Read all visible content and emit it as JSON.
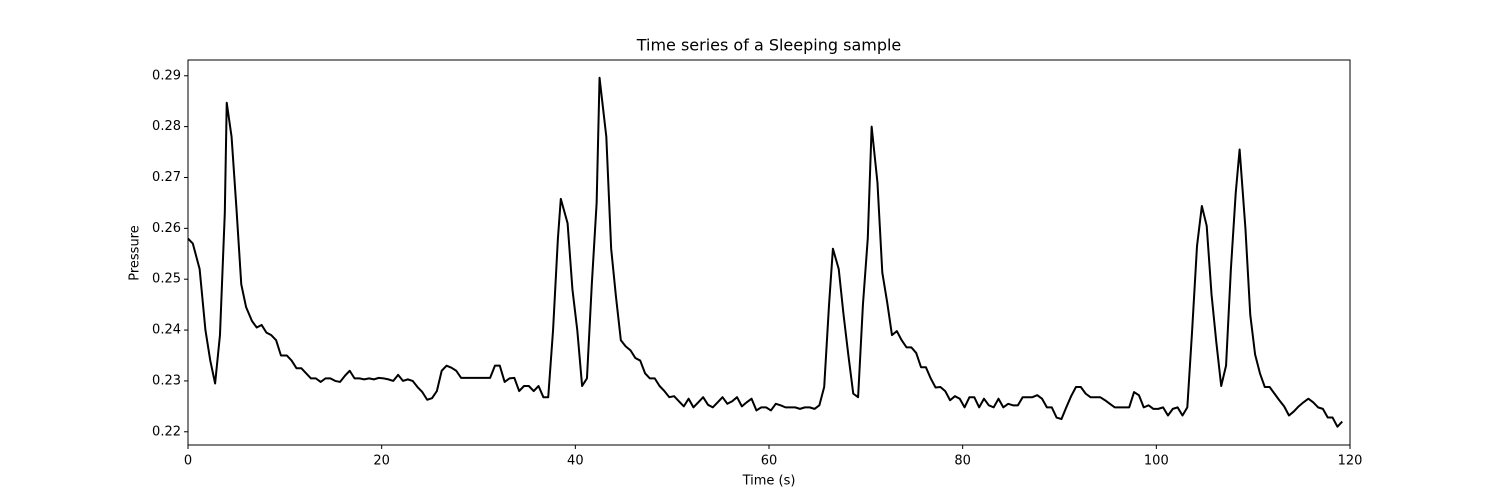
{
  "chart_data": {
    "type": "line",
    "title": "Time series of a Sleeping sample",
    "x_label": "Time (s)",
    "y_label": "Pressure",
    "x": [
      0,
      0.5,
      1.2,
      1.8,
      2.3,
      2.8,
      3.3,
      3.8,
      4.0,
      4.5,
      5.0,
      5.5,
      6.0,
      6.6,
      7.1,
      7.6,
      8.1,
      8.6,
      9.1,
      9.6,
      10.2,
      10.7,
      11.2,
      11.7,
      12.2,
      12.7,
      13.2,
      13.7,
      14.2,
      14.7,
      15.2,
      15.7,
      16.2,
      16.7,
      17.2,
      17.7,
      18.2,
      18.7,
      19.2,
      19.7,
      20.2,
      20.7,
      21.2,
      21.7,
      22.2,
      22.7,
      23.2,
      23.7,
      24.2,
      24.7,
      25.2,
      25.7,
      26.2,
      26.7,
      27.2,
      27.7,
      28.2,
      28.7,
      29.2,
      29.7,
      30.2,
      30.7,
      31.2,
      31.7,
      32.2,
      32.7,
      33.2,
      33.7,
      34.2,
      34.7,
      35.2,
      35.7,
      36.2,
      36.7,
      37.2,
      37.7,
      38.2,
      38.5,
      39.2,
      39.7,
      40.2,
      40.7,
      41.2,
      41.7,
      42.2,
      42.5,
      43.2,
      43.7,
      44.2,
      44.7,
      45.2,
      45.7,
      46.2,
      46.7,
      47.2,
      47.7,
      48.2,
      48.7,
      49.2,
      49.7,
      50.2,
      50.7,
      51.2,
      51.7,
      52.2,
      52.7,
      53.2,
      53.7,
      54.2,
      54.7,
      55.2,
      55.7,
      56.2,
      56.7,
      57.2,
      57.7,
      58.2,
      58.7,
      59.2,
      59.7,
      60.2,
      60.7,
      61.2,
      61.7,
      62.2,
      62.7,
      63.2,
      63.7,
      64.2,
      64.7,
      65.2,
      65.7,
      66.2,
      66.6,
      67.2,
      67.7,
      68.2,
      68.7,
      69.2,
      69.7,
      70.2,
      70.6,
      71.2,
      71.7,
      72.2,
      72.7,
      73.2,
      73.7,
      74.2,
      74.7,
      75.2,
      75.7,
      76.2,
      76.7,
      77.2,
      77.7,
      78.2,
      78.7,
      79.2,
      79.7,
      80.2,
      80.7,
      81.2,
      81.7,
      82.2,
      82.7,
      83.2,
      83.7,
      84.2,
      84.7,
      85.2,
      85.7,
      86.2,
      86.7,
      87.2,
      87.7,
      88.2,
      88.7,
      89.2,
      89.7,
      90.2,
      90.7,
      91.2,
      91.7,
      92.2,
      92.7,
      93.2,
      94.2,
      94.7,
      95.2,
      95.7,
      96.2,
      96.7,
      97.2,
      97.7,
      98.2,
      98.7,
      99.2,
      99.7,
      100.2,
      100.7,
      101.2,
      101.7,
      102.2,
      102.7,
      103.2,
      103.7,
      104.2,
      104.7,
      105.2,
      105.7,
      106.2,
      106.7,
      107.2,
      107.7,
      108.2,
      108.6,
      109.2,
      109.7,
      110.2,
      110.7,
      111.2,
      111.7,
      112.2,
      112.7,
      113.2,
      113.7,
      114.2,
      114.7,
      115.2,
      115.7,
      116.2,
      116.7,
      117.2,
      117.7,
      118.2,
      118.7,
      119.2
    ],
    "values": [
      0.258,
      0.257,
      0.252,
      0.24,
      0.234,
      0.2295,
      0.239,
      0.263,
      0.2847,
      0.278,
      0.264,
      0.249,
      0.2445,
      0.2418,
      0.2405,
      0.241,
      0.2395,
      0.239,
      0.238,
      0.235,
      0.235,
      0.234,
      0.2325,
      0.2325,
      0.2315,
      0.2305,
      0.2305,
      0.2298,
      0.2305,
      0.2305,
      0.23,
      0.2298,
      0.231,
      0.232,
      0.2305,
      0.2305,
      0.2303,
      0.2305,
      0.2303,
      0.2306,
      0.2305,
      0.2303,
      0.23,
      0.2312,
      0.23,
      0.2303,
      0.23,
      0.2288,
      0.2278,
      0.2263,
      0.2266,
      0.228,
      0.232,
      0.233,
      0.2326,
      0.232,
      0.2306,
      0.2306,
      0.2306,
      0.2306,
      0.2306,
      0.2306,
      0.2306,
      0.233,
      0.233,
      0.2298,
      0.2305,
      0.2306,
      0.228,
      0.229,
      0.229,
      0.228,
      0.229,
      0.2268,
      0.2268,
      0.24,
      0.258,
      0.2658,
      0.261,
      0.248,
      0.24,
      0.229,
      0.2305,
      0.249,
      0.265,
      0.2896,
      0.278,
      0.256,
      0.2465,
      0.238,
      0.2368,
      0.236,
      0.2345,
      0.234,
      0.2315,
      0.2305,
      0.2305,
      0.229,
      0.228,
      0.2268,
      0.227,
      0.226,
      0.225,
      0.2265,
      0.2248,
      0.2258,
      0.2268,
      0.2253,
      0.2248,
      0.2258,
      0.2268,
      0.2255,
      0.226,
      0.2268,
      0.225,
      0.2258,
      0.2265,
      0.2242,
      0.2248,
      0.2248,
      0.2242,
      0.2255,
      0.2252,
      0.2248,
      0.2248,
      0.2248,
      0.2245,
      0.2248,
      0.2248,
      0.2245,
      0.2252,
      0.2288,
      0.245,
      0.256,
      0.252,
      0.243,
      0.235,
      0.2275,
      0.2268,
      0.245,
      0.258,
      0.28,
      0.269,
      0.2513,
      0.2455,
      0.239,
      0.2398,
      0.238,
      0.2366,
      0.2366,
      0.2355,
      0.2327,
      0.2327,
      0.2305,
      0.2287,
      0.2288,
      0.228,
      0.2262,
      0.227,
      0.2265,
      0.2248,
      0.2268,
      0.2268,
      0.2248,
      0.2265,
      0.2252,
      0.2248,
      0.2265,
      0.2248,
      0.2255,
      0.2252,
      0.2252,
      0.2268,
      0.2268,
      0.2268,
      0.2272,
      0.2265,
      0.2248,
      0.2248,
      0.2228,
      0.2225,
      0.2248,
      0.227,
      0.2288,
      0.2288,
      0.2275,
      0.2268,
      0.2268,
      0.2262,
      0.2255,
      0.2248,
      0.2248,
      0.2248,
      0.2248,
      0.2278,
      0.2272,
      0.2248,
      0.2252,
      0.2245,
      0.2245,
      0.2248,
      0.2232,
      0.2245,
      0.2248,
      0.2232,
      0.2248,
      0.24,
      0.2565,
      0.2644,
      0.2605,
      0.247,
      0.2375,
      0.229,
      0.233,
      0.252,
      0.267,
      0.2755,
      0.26,
      0.243,
      0.2352,
      0.2315,
      0.2288,
      0.2288,
      0.2275,
      0.2262,
      0.225,
      0.2232,
      0.224,
      0.225,
      0.2258,
      0.2265,
      0.2258,
      0.2248,
      0.2245,
      0.2228,
      0.2228,
      0.221,
      0.222
    ],
    "color": "#000000",
    "xlim": [
      0,
      120
    ],
    "xticks": [
      0,
      20,
      40,
      60,
      80,
      100,
      120
    ],
    "ylim": [
      0.2174,
      0.2931
    ],
    "yticks": [
      0.22,
      0.23,
      0.24,
      0.25,
      0.26,
      0.27,
      0.28,
      0.29
    ],
    "grid": false
  }
}
